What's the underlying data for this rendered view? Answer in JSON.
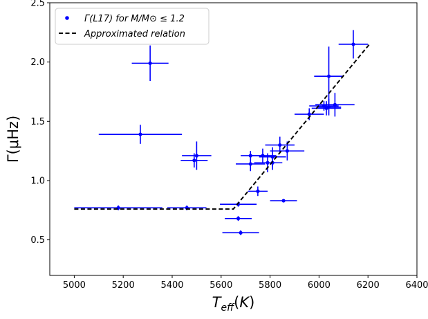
{
  "chart_data": {
    "type": "scatter",
    "xlim": [
      4900,
      6400
    ],
    "ylim": [
      0.2,
      2.5
    ],
    "xticks": [
      5000,
      5200,
      5400,
      5600,
      5800,
      6000,
      6200,
      6400
    ],
    "yticks": [
      0.5,
      1.0,
      1.5,
      2.0,
      2.5
    ],
    "xtick_labels": [
      "5000",
      "5200",
      "5400",
      "5600",
      "5800",
      "6000",
      "6200",
      "6400"
    ],
    "ytick_labels": [
      "0.5",
      "1.0",
      "1.5",
      "2.0",
      "2.5"
    ],
    "xlabel": "T_eff(K)",
    "ylabel": "Γ(μHz)",
    "grid": false,
    "legend_position": "top-left",
    "legend": [
      {
        "label": "Γ(L17) for M/M⊙ ≤ 1.2",
        "marker": "dot",
        "color": "#0000ff"
      },
      {
        "label": "Approximated relation",
        "marker": "dashed-line",
        "color": "#000000"
      }
    ],
    "series": [
      {
        "name": "Γ(L17) for M/M⊙ ≤ 1.2",
        "kind": "errorbar",
        "color": "#0000ff",
        "points": [
          {
            "x": 5180,
            "y": 0.77,
            "xerr": 180,
            "yerr": 0.02
          },
          {
            "x": 5460,
            "y": 0.77,
            "xerr": 80,
            "yerr": 0.02
          },
          {
            "x": 5270,
            "y": 1.39,
            "xerr": 170,
            "yerr": 0.08
          },
          {
            "x": 5310,
            "y": 1.99,
            "xerr": 75,
            "yerr": 0.15
          },
          {
            "x": 5490,
            "y": 1.17,
            "xerr": 55,
            "yerr": 0.06
          },
          {
            "x": 5500,
            "y": 1.21,
            "xerr": 60,
            "yerr": 0.12
          },
          {
            "x": 5670,
            "y": 0.8,
            "xerr": 75,
            "yerr": 0.02
          },
          {
            "x": 5670,
            "y": 0.68,
            "xerr": 55,
            "yerr": 0.02
          },
          {
            "x": 5680,
            "y": 0.56,
            "xerr": 75,
            "yerr": 0.02
          },
          {
            "x": 5720,
            "y": 1.14,
            "xerr": 60,
            "yerr": 0.06
          },
          {
            "x": 5720,
            "y": 1.21,
            "xerr": 40,
            "yerr": 0.04
          },
          {
            "x": 5750,
            "y": 0.91,
            "xerr": 40,
            "yerr": 0.04
          },
          {
            "x": 5770,
            "y": 1.21,
            "xerr": 55,
            "yerr": 0.06
          },
          {
            "x": 5790,
            "y": 1.15,
            "xerr": 55,
            "yerr": 0.08
          },
          {
            "x": 5810,
            "y": 1.2,
            "xerr": 55,
            "yerr": 0.08
          },
          {
            "x": 5810,
            "y": 1.15,
            "xerr": 40,
            "yerr": 0.06
          },
          {
            "x": 5840,
            "y": 1.3,
            "xerr": 60,
            "yerr": 0.07
          },
          {
            "x": 5855,
            "y": 0.83,
            "xerr": 55,
            "yerr": 0.01
          },
          {
            "x": 5870,
            "y": 1.25,
            "xerr": 70,
            "yerr": 0.08
          },
          {
            "x": 5960,
            "y": 1.56,
            "xerr": 60,
            "yerr": 0.05
          },
          {
            "x": 6020,
            "y": 1.63,
            "xerr": 60,
            "yerr": 0.04
          },
          {
            "x": 6030,
            "y": 1.61,
            "xerr": 60,
            "yerr": 0.06
          },
          {
            "x": 6040,
            "y": 1.62,
            "xerr": 50,
            "yerr": 0.07
          },
          {
            "x": 6040,
            "y": 1.88,
            "xerr": 60,
            "yerr": 0.25
          },
          {
            "x": 6065,
            "y": 1.64,
            "xerr": 80,
            "yerr": 0.1
          },
          {
            "x": 6140,
            "y": 2.15,
            "xerr": 60,
            "yerr": 0.12
          }
        ]
      },
      {
        "name": "Approximated relation",
        "kind": "line",
        "style": "dashed",
        "color": "#000000",
        "points": [
          {
            "x": 5000,
            "y": 0.76
          },
          {
            "x": 5650,
            "y": 0.76
          },
          {
            "x": 6210,
            "y": 2.16
          }
        ]
      }
    ]
  }
}
